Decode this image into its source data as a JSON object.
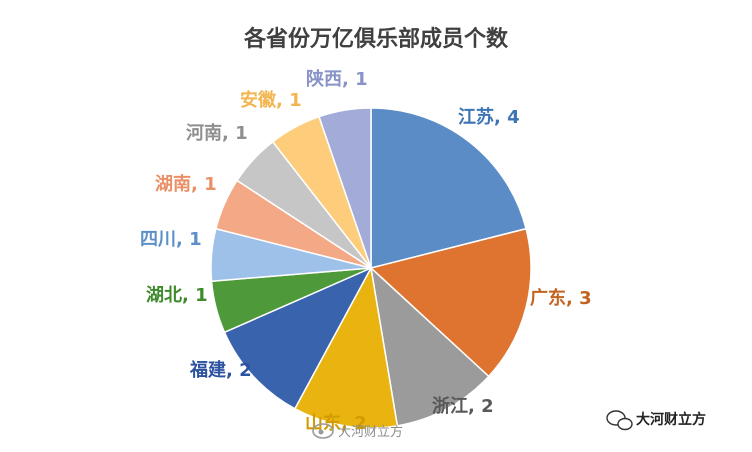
{
  "chart_data": {
    "type": "pie",
    "title": "各省份万亿俱乐部成员个数",
    "slices": [
      {
        "label": "江苏",
        "value": 4,
        "display": "江苏, 4",
        "color": "#5b8cc6",
        "label_color": "#3d74b4"
      },
      {
        "label": "广东",
        "value": 3,
        "display": "广东, 3",
        "color": "#de742f",
        "label_color": "#c3631f"
      },
      {
        "label": "浙江",
        "value": 2,
        "display": "浙江, 2",
        "color": "#9b9b9b",
        "label_color": "#595959"
      },
      {
        "label": "山东",
        "value": 2,
        "display": "山东, 2",
        "color": "#eab410",
        "label_color": "#d29c00"
      },
      {
        "label": "福建",
        "value": 2,
        "display": "福建, 2",
        "color": "#3a63ad",
        "label_color": "#2c52a0"
      },
      {
        "label": "湖北",
        "value": 1,
        "display": "湖北, 1",
        "color": "#4e9a3a",
        "label_color": "#3e8a2c"
      },
      {
        "label": "四川",
        "value": 1,
        "display": "四川, 1",
        "color": "#9ec1e9",
        "label_color": "#5d8fc9"
      },
      {
        "label": "湖南",
        "value": 1,
        "display": "湖南, 1",
        "color": "#f3a985",
        "label_color": "#ea8f66"
      },
      {
        "label": "河南",
        "value": 1,
        "display": "河南, 1",
        "color": "#c6c6c6",
        "label_color": "#8f8f8f"
      },
      {
        "label": "安徽",
        "value": 1,
        "display": "安徽, 1",
        "color": "#fdcd7c",
        "label_color": "#f2b54f"
      },
      {
        "label": "陕西",
        "value": 1,
        "display": "陕西, 1",
        "color": "#a3abd9",
        "label_color": "#8a93c8"
      }
    ]
  },
  "watermark": {
    "weibo_text": "大河财立方",
    "wechat_text": "大河财立方",
    "weibo_icon": "weibo-icon",
    "wechat_icon": "wechat-icon"
  }
}
